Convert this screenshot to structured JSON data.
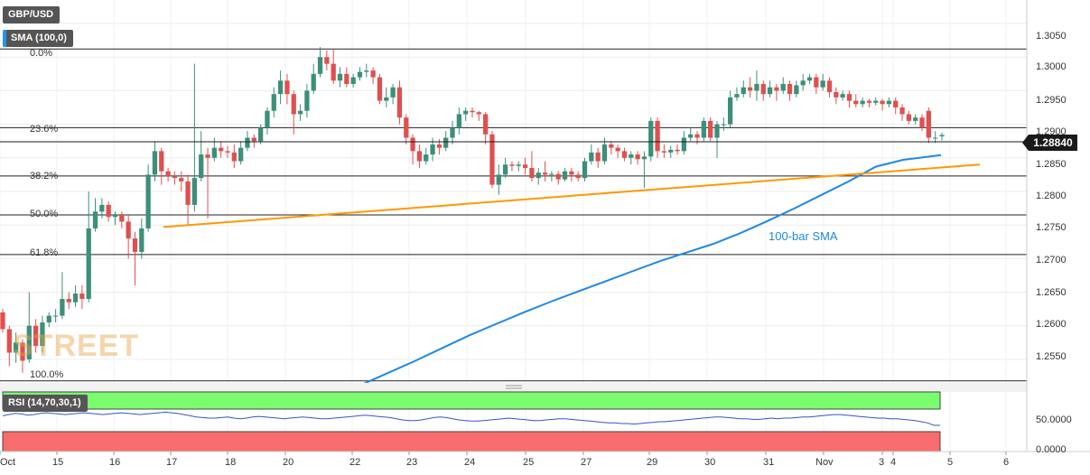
{
  "header": {
    "symbol": "GBP/USD",
    "indicator": "SMA (100,0)",
    "current_price": "1.28840"
  },
  "watermark": "STREET",
  "sma_annotation": "100-bar SMA",
  "rsi": {
    "label": "RSI (14,70,30,1)",
    "ticks": [
      "50.0000",
      "0.0000"
    ],
    "overbought": 70,
    "oversold": 30,
    "values": [
      60,
      62,
      64,
      63,
      61,
      62,
      64,
      65,
      64,
      63,
      62,
      63,
      64,
      65,
      64,
      63,
      62,
      63,
      64,
      65,
      64,
      63,
      62,
      63,
      64,
      65,
      66,
      65,
      64,
      62,
      60,
      58,
      57,
      56,
      56,
      57,
      58,
      56,
      55,
      56,
      58,
      59,
      58,
      57,
      56,
      55,
      56,
      57,
      58,
      57,
      56,
      55,
      55,
      56,
      57,
      58,
      59,
      60,
      61,
      60,
      59,
      58,
      57,
      55,
      53,
      52,
      52,
      53,
      55,
      57,
      58,
      57,
      55,
      53,
      52,
      51,
      51,
      52,
      53,
      54,
      55,
      56,
      55,
      54,
      53,
      52,
      52,
      53,
      54,
      55,
      55,
      54,
      53,
      52,
      51,
      50,
      49,
      48,
      48,
      47,
      47,
      46,
      47,
      48,
      49,
      50,
      50,
      51,
      52,
      53,
      54,
      55,
      56,
      57,
      58,
      58,
      57,
      56,
      55,
      55,
      54,
      54,
      55,
      56,
      55,
      56,
      56,
      57,
      58,
      58,
      59,
      60,
      61,
      62,
      62,
      61,
      60,
      59,
      58,
      57,
      56,
      56,
      55,
      55,
      54,
      53,
      52,
      50,
      48,
      44,
      44
    ]
  },
  "chart_data": {
    "type": "candlestick",
    "title": "GBP/USD",
    "y_ticks": [
      "1.3050",
      "1.3000",
      "1.2950",
      "1.2900",
      "1.2850",
      "1.2800",
      "1.2750",
      "1.2700",
      "1.2650",
      "1.2600",
      "1.2550"
    ],
    "x_ticks": [
      "Oct",
      "15",
      "16",
      "17",
      "18",
      "20",
      "22",
      "23",
      "24",
      "25",
      "27",
      "29",
      "30",
      "31",
      "Nov",
      "3",
      "4",
      "5",
      "6"
    ],
    "ylim": [
      1.2515,
      1.3085
    ],
    "fibonacci": [
      {
        "label": "0.0%",
        "value": 1.3012
      },
      {
        "label": "23.6%",
        "value": 1.2895
      },
      {
        "label": "38.2%",
        "value": 1.2823
      },
      {
        "label": "50.0%",
        "value": 1.2765
      },
      {
        "label": "61.8%",
        "value": 1.2706
      },
      {
        "label": "100.0%",
        "value": 1.2518
      }
    ],
    "current_price": 1.2884,
    "support_trendline": {
      "start": [
        1.2747
      ],
      "end": [
        1.284
      ],
      "color": "#ff9800"
    },
    "sma_100": {
      "name": "100-bar SMA",
      "color": "#1e88e5"
    },
    "candles": [
      [
        1.262,
        1.2595,
        1.2625,
        1.259
      ],
      [
        1.2595,
        1.256,
        1.26,
        1.254
      ],
      [
        1.256,
        1.2575,
        1.259,
        1.2545
      ],
      [
        1.2575,
        1.2548,
        1.258,
        1.253
      ],
      [
        1.255,
        1.26,
        1.265,
        1.2545
      ],
      [
        1.26,
        1.257,
        1.261,
        1.256
      ],
      [
        1.257,
        1.2605,
        1.2615,
        1.256
      ],
      [
        1.2605,
        1.2615,
        1.262,
        1.2598
      ],
      [
        1.2615,
        1.2615,
        1.2625,
        1.2605
      ],
      [
        1.2615,
        1.264,
        1.268,
        1.261
      ],
      [
        1.264,
        1.2635,
        1.265,
        1.2625
      ],
      [
        1.2635,
        1.2648,
        1.266,
        1.2628
      ],
      [
        1.2648,
        1.264,
        1.266,
        1.2625
      ],
      [
        1.264,
        1.2745,
        1.28,
        1.2635
      ],
      [
        1.2745,
        1.277,
        1.279,
        1.274
      ],
      [
        1.277,
        1.278,
        1.279,
        1.276
      ],
      [
        1.278,
        1.2762,
        1.2785,
        1.2755
      ],
      [
        1.2762,
        1.2765,
        1.277,
        1.275
      ],
      [
        1.2765,
        1.2755,
        1.277,
        1.2745
      ],
      [
        1.2755,
        1.273,
        1.2765,
        1.27
      ],
      [
        1.273,
        1.271,
        1.274,
        1.266
      ],
      [
        1.271,
        1.2745,
        1.276,
        1.27
      ],
      [
        1.2745,
        1.2825,
        1.284,
        1.274
      ],
      [
        1.2825,
        1.286,
        1.2875,
        1.2815
      ],
      [
        1.286,
        1.283,
        1.2865,
        1.281
      ],
      [
        1.283,
        1.2822,
        1.2835,
        1.2815
      ],
      [
        1.2822,
        1.282,
        1.283,
        1.281
      ],
      [
        1.282,
        1.2815,
        1.283,
        1.28
      ],
      [
        1.2815,
        1.278,
        1.2825,
        1.275
      ],
      [
        1.278,
        1.282,
        1.299,
        1.277
      ],
      [
        1.282,
        1.2855,
        1.289,
        1.2815
      ],
      [
        1.2855,
        1.285,
        1.2865,
        1.276
      ],
      [
        1.285,
        1.2865,
        1.288,
        1.2845
      ],
      [
        1.2865,
        1.286,
        1.2875,
        1.285
      ],
      [
        1.286,
        1.2858,
        1.2868,
        1.285
      ],
      [
        1.2858,
        1.2845,
        1.287,
        1.2835
      ],
      [
        1.2845,
        1.2865,
        1.2875,
        1.284
      ],
      [
        1.2865,
        1.288,
        1.289,
        1.286
      ],
      [
        1.288,
        1.2875,
        1.2885,
        1.2865
      ],
      [
        1.2875,
        1.2895,
        1.29,
        1.287
      ],
      [
        1.2895,
        1.292,
        1.2925,
        1.2885
      ],
      [
        1.292,
        1.2945,
        1.2955,
        1.291
      ],
      [
        1.2945,
        1.2965,
        1.298,
        1.293
      ],
      [
        1.2965,
        1.2945,
        1.2975,
        1.293
      ],
      [
        1.2945,
        1.2915,
        1.295,
        1.2885
      ],
      [
        1.2915,
        1.292,
        1.293,
        1.2905
      ],
      [
        1.292,
        1.295,
        1.296,
        1.291
      ],
      [
        1.295,
        1.2975,
        1.299,
        1.2945
      ],
      [
        1.2975,
        1.3,
        1.3015,
        1.297
      ],
      [
        1.3,
        1.299,
        1.301,
        1.298
      ],
      [
        1.299,
        1.2965,
        1.3012,
        1.296
      ],
      [
        1.2965,
        1.2975,
        1.2985,
        1.2955
      ],
      [
        1.2975,
        1.296,
        1.2985,
        1.2955
      ],
      [
        1.296,
        1.297,
        1.2975,
        1.2955
      ],
      [
        1.297,
        1.2978,
        1.2985,
        1.2965
      ],
      [
        1.2978,
        1.298,
        1.299,
        1.297
      ],
      [
        1.298,
        1.297,
        1.2985,
        1.296
      ],
      [
        1.297,
        1.2935,
        1.2975,
        1.293
      ],
      [
        1.2935,
        1.294,
        1.2955,
        1.2925
      ],
      [
        1.294,
        1.2955,
        1.296,
        1.293
      ],
      [
        1.2955,
        1.291,
        1.2965,
        1.29
      ],
      [
        1.291,
        1.288,
        1.2915,
        1.287
      ],
      [
        1.288,
        1.286,
        1.2885,
        1.284
      ],
      [
        1.286,
        1.2845,
        1.287,
        1.2835
      ],
      [
        1.2845,
        1.2855,
        1.2865,
        1.284
      ],
      [
        1.2855,
        1.287,
        1.288,
        1.2845
      ],
      [
        1.287,
        1.2865,
        1.2878,
        1.2855
      ],
      [
        1.2865,
        1.288,
        1.289,
        1.286
      ],
      [
        1.288,
        1.2895,
        1.2905,
        1.287
      ],
      [
        1.2895,
        1.2915,
        1.2925,
        1.2885
      ],
      [
        1.2915,
        1.292,
        1.2925,
        1.2905
      ],
      [
        1.292,
        1.2918,
        1.2925,
        1.291
      ],
      [
        1.2918,
        1.2915,
        1.292,
        1.2905
      ],
      [
        1.2915,
        1.2885,
        1.2918,
        1.287
      ],
      [
        1.2885,
        1.281,
        1.289,
        1.2805
      ],
      [
        1.281,
        1.2825,
        1.284,
        1.2795
      ],
      [
        1.2825,
        1.284,
        1.285,
        1.282
      ],
      [
        1.284,
        1.2838,
        1.2845,
        1.283
      ],
      [
        1.2838,
        1.284,
        1.2845,
        1.283
      ],
      [
        1.284,
        1.2835,
        1.285,
        1.2825
      ],
      [
        1.2835,
        1.282,
        1.286,
        1.2815
      ],
      [
        1.282,
        1.2828,
        1.2835,
        1.281
      ],
      [
        1.2828,
        1.2825,
        1.2845,
        1.2815
      ],
      [
        1.2825,
        1.2826,
        1.283,
        1.2815
      ],
      [
        1.2826,
        1.2818,
        1.283,
        1.281
      ],
      [
        1.2818,
        1.283,
        1.2835,
        1.2815
      ],
      [
        1.283,
        1.2825,
        1.2835,
        1.2815
      ],
      [
        1.2825,
        1.282,
        1.283,
        1.2815
      ],
      [
        1.282,
        1.2845,
        1.285,
        1.2815
      ],
      [
        1.2845,
        1.2858,
        1.287,
        1.284
      ],
      [
        1.2858,
        1.2845,
        1.2865,
        1.2835
      ],
      [
        1.2845,
        1.287,
        1.288,
        1.284
      ],
      [
        1.287,
        1.2865,
        1.2875,
        1.2855
      ],
      [
        1.2865,
        1.286,
        1.287,
        1.285
      ],
      [
        1.286,
        1.285,
        1.2865,
        1.2845
      ],
      [
        1.285,
        1.2855,
        1.286,
        1.284
      ],
      [
        1.2855,
        1.2848,
        1.286,
        1.284
      ],
      [
        1.2848,
        1.2852,
        1.286,
        1.2805
      ],
      [
        1.2852,
        1.2905,
        1.291,
        1.2845
      ],
      [
        1.2905,
        1.286,
        1.291,
        1.285
      ],
      [
        1.286,
        1.2858,
        1.287,
        1.285
      ],
      [
        1.2858,
        1.2862,
        1.2868,
        1.285
      ],
      [
        1.2862,
        1.286,
        1.287,
        1.2855
      ],
      [
        1.286,
        1.288,
        1.289,
        1.2855
      ],
      [
        1.288,
        1.2885,
        1.2895,
        1.2875
      ],
      [
        1.2885,
        1.288,
        1.289,
        1.287
      ],
      [
        1.288,
        1.2905,
        1.291,
        1.2875
      ],
      [
        1.2905,
        1.288,
        1.291,
        1.2875
      ],
      [
        1.288,
        1.29,
        1.2905,
        1.285
      ],
      [
        1.29,
        1.29,
        1.291,
        1.289
      ],
      [
        1.29,
        1.294,
        1.295,
        1.2895
      ],
      [
        1.294,
        1.2945,
        1.2955,
        1.2935
      ],
      [
        1.2945,
        1.2955,
        1.2965,
        1.294
      ],
      [
        1.2955,
        1.295,
        1.297,
        1.294
      ],
      [
        1.295,
        1.296,
        1.298,
        1.2935
      ],
      [
        1.296,
        1.2945,
        1.2965,
        1.2935
      ],
      [
        1.2945,
        1.2955,
        1.2965,
        1.294
      ],
      [
        1.2955,
        1.295,
        1.296,
        1.2935
      ],
      [
        1.295,
        1.296,
        1.297,
        1.2945
      ],
      [
        1.296,
        1.2945,
        1.2965,
        1.2935
      ],
      [
        1.2945,
        1.2958,
        1.2965,
        1.294
      ],
      [
        1.2958,
        1.2965,
        1.2975,
        1.295
      ],
      [
        1.2965,
        1.297,
        1.2975,
        1.296
      ],
      [
        1.297,
        1.2955,
        1.2975,
        1.2945
      ],
      [
        1.2955,
        1.2965,
        1.2975,
        1.295
      ],
      [
        1.2965,
        1.2948,
        1.297,
        1.294
      ],
      [
        1.2948,
        1.294,
        1.2955,
        1.293
      ],
      [
        1.294,
        1.2945,
        1.295,
        1.2935
      ],
      [
        1.2945,
        1.2935,
        1.295,
        1.2925
      ],
      [
        1.2935,
        1.293,
        1.2945,
        1.2925
      ],
      [
        1.293,
        1.2935,
        1.294,
        1.2925
      ],
      [
        1.2935,
        1.2932,
        1.2938,
        1.2925
      ],
      [
        1.2932,
        1.2935,
        1.294,
        1.2928
      ],
      [
        1.2935,
        1.293,
        1.2938,
        1.292
      ],
      [
        1.293,
        1.2935,
        1.294,
        1.2925
      ],
      [
        1.2935,
        1.2925,
        1.294,
        1.2915
      ],
      [
        1.2925,
        1.2915,
        1.293,
        1.2905
      ],
      [
        1.2915,
        1.2905,
        1.292,
        1.29
      ],
      [
        1.2905,
        1.291,
        1.2915,
        1.29
      ],
      [
        1.291,
        1.2895,
        1.2915,
        1.289
      ],
      [
        1.292,
        1.288,
        1.2925,
        1.2872
      ],
      [
        1.288,
        1.288,
        1.289,
        1.2872
      ],
      [
        1.2882,
        1.2884,
        1.2888,
        1.2876
      ]
    ]
  }
}
